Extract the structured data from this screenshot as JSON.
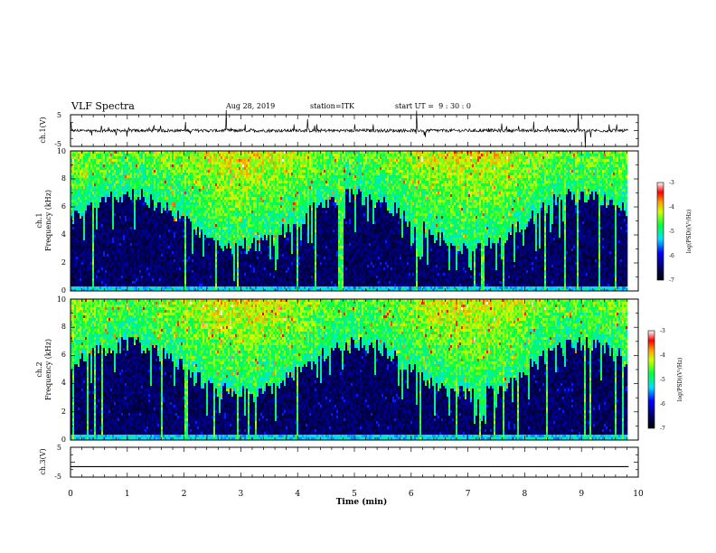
{
  "header": {
    "title": "VLF Spectra",
    "date": "Aug 28, 2019",
    "station": "station=ITK",
    "start_ut": "start UT =  9 : 30 : 0"
  },
  "chart_data": [
    {
      "type": "line",
      "ylabel": "ch.1(V)",
      "ylim": [
        -5,
        5
      ],
      "yticks": [
        "5",
        "-5"
      ],
      "xlim": [
        0,
        10
      ],
      "baseline": 0,
      "description_series": "ch.1 waveform with impulsive spikes"
    },
    {
      "type": "heatmap",
      "ylabel_line1": "ch.1",
      "ylabel_line2": "Frequency (kHz)",
      "ylim": [
        0,
        10
      ],
      "yticks": [
        "0",
        "2",
        "4",
        "6",
        "8",
        "10"
      ],
      "xlim": [
        0,
        9.83
      ],
      "colorbar": {
        "label": "log(PSD)(V²/Hz)",
        "range": [
          -7,
          -3
        ],
        "ticks": [
          "-3",
          "-4",
          "-5",
          "-6",
          "-7"
        ]
      }
    },
    {
      "type": "heatmap",
      "ylabel_line1": "ch.2",
      "ylabel_line2": "Frequency (kHz)",
      "ylim": [
        0,
        10
      ],
      "yticks": [
        "0",
        "2",
        "4",
        "6",
        "8",
        "10"
      ],
      "xlim": [
        0,
        9.83
      ],
      "colorbar": {
        "label": "log(PSD)(V²/Hz)",
        "range": [
          -7,
          -3
        ],
        "ticks": [
          "-3",
          "-4",
          "-5",
          "-6",
          "-7"
        ]
      }
    },
    {
      "type": "line",
      "ylabel": "ch.3(V)",
      "ylim": [
        -5,
        5
      ],
      "yticks": [
        "5",
        "-5"
      ],
      "xlim": [
        0,
        10
      ],
      "baseline": -1.5
    }
  ],
  "xaxis": {
    "label": "Time (min)",
    "ticks": [
      "0",
      "1",
      "2",
      "3",
      "4",
      "5",
      "6",
      "7",
      "8",
      "9",
      "10"
    ]
  },
  "colors": {
    "axis": "#000000",
    "trace": "#000000"
  }
}
